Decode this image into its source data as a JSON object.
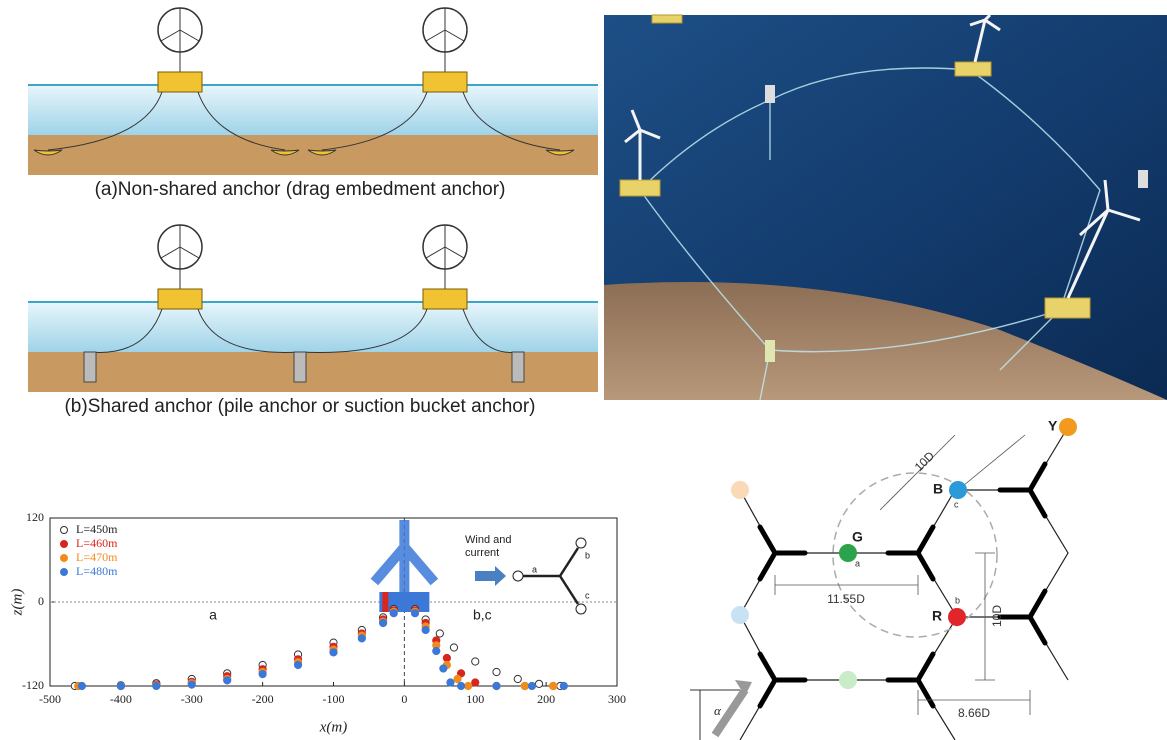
{
  "figure": {
    "caption_a": "(a)Non-shared anchor (drag embedment anchor)",
    "caption_b": "(b)Shared anchor (pile anchor or suction bucket anchor)"
  },
  "chart_data": {
    "type": "scatter",
    "xlabel": "x(m)",
    "ylabel": "z(m)",
    "xlim": [
      -500,
      300
    ],
    "ylim": [
      -120,
      120
    ],
    "xticks": [
      -500,
      -400,
      -300,
      -200,
      -100,
      0,
      100,
      200,
      300
    ],
    "yticks": [
      -120,
      0,
      120
    ],
    "annotations": [
      "a",
      "b,c"
    ],
    "inset_text": [
      "Wind and",
      "current"
    ],
    "inset_ports": [
      "a",
      "b",
      "c"
    ],
    "series": [
      {
        "name": "L=450m",
        "color": "#333333",
        "marker": "open",
        "x": [
          -465,
          -400,
          -350,
          -300,
          -250,
          -200,
          -150,
          -100,
          -60,
          -30,
          -15,
          15,
          30,
          50,
          70,
          100,
          130,
          160,
          190,
          220
        ],
        "values": [
          -120,
          -119,
          -116,
          -110,
          -102,
          -90,
          -75,
          -58,
          -40,
          -22,
          -10,
          -10,
          -25,
          -45,
          -65,
          -85,
          -100,
          -110,
          -117,
          -120
        ]
      },
      {
        "name": "L=460m",
        "color": "#d7261e",
        "marker": "filled",
        "x": [
          -460,
          -400,
          -350,
          -300,
          -250,
          -200,
          -150,
          -100,
          -60,
          -30,
          -15,
          15,
          30,
          45,
          60,
          80,
          100,
          130,
          170,
          210
        ],
        "values": [
          -120,
          -120,
          -118,
          -114,
          -106,
          -96,
          -82,
          -64,
          -45,
          -25,
          -12,
          -12,
          -30,
          -55,
          -80,
          -102,
          -115,
          -120,
          -120,
          -120
        ]
      },
      {
        "name": "L=470m",
        "color": "#f08c1c",
        "marker": "filled",
        "x": [
          -460,
          -400,
          -350,
          -300,
          -250,
          -200,
          -150,
          -100,
          -60,
          -30,
          -15,
          15,
          30,
          45,
          60,
          75,
          90,
          130,
          170,
          210
        ],
        "values": [
          -120,
          -120,
          -119,
          -116,
          -110,
          -100,
          -86,
          -68,
          -48,
          -28,
          -14,
          -14,
          -35,
          -62,
          -90,
          -110,
          -120,
          -120,
          -120,
          -120
        ]
      },
      {
        "name": "L=480m",
        "color": "#3b78d8",
        "marker": "filled",
        "x": [
          -455,
          -400,
          -350,
          -300,
          -250,
          -200,
          -150,
          -100,
          -60,
          -30,
          -15,
          15,
          30,
          45,
          55,
          65,
          80,
          130,
          180,
          225
        ],
        "values": [
          -120,
          -120,
          -120,
          -118,
          -112,
          -103,
          -90,
          -72,
          -52,
          -30,
          -16,
          -16,
          -40,
          -70,
          -95,
          -115,
          -120,
          -120,
          -120,
          -120
        ]
      }
    ]
  },
  "hexagon": {
    "nodes": [
      "Y",
      "B",
      "G",
      "R"
    ],
    "ports": [
      "c",
      "a",
      "b"
    ],
    "dimensions": [
      "10D",
      "11.55D",
      "10D",
      "8.66D"
    ],
    "angle": "α"
  }
}
